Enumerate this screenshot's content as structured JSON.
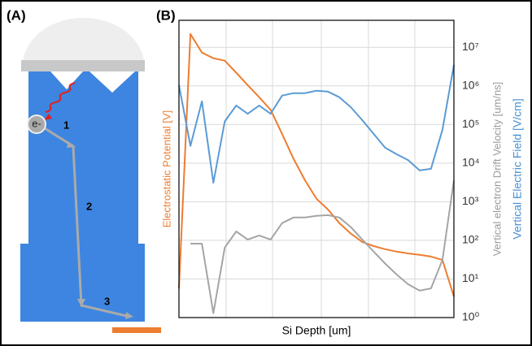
{
  "panel_a": {
    "label": "(A)",
    "electron": "e-",
    "steps": [
      "1",
      "2",
      "3"
    ]
  },
  "chart_data": {
    "type": "line",
    "panel_label": "(B)",
    "x_label": "Si Depth [um]",
    "y_label": "Electrostatic Potential [V]",
    "y2_labels": [
      {
        "text": "Vertical electron Drift Velocity [um/ns]",
        "color": "#9a9a9a"
      },
      {
        "text": "Vertical Electric Field [V/cm]",
        "color": "#4a8fd0"
      }
    ],
    "log_scale": true,
    "grid": true,
    "ylim": [
      1,
      50000000
    ],
    "yticks": [
      {
        "value": 1,
        "label": "10⁰"
      },
      {
        "value": 10,
        "label": "10¹"
      },
      {
        "value": 100,
        "label": "10²"
      },
      {
        "value": 1000,
        "label": "10³"
      },
      {
        "value": 10000,
        "label": "10⁴"
      },
      {
        "value": 100000,
        "label": "10⁵"
      },
      {
        "value": 1000000,
        "label": "10⁶"
      },
      {
        "value": 10000000,
        "label": "10⁷"
      }
    ],
    "categories": [
      null,
      null,
      null,
      null,
      null,
      null,
      null,
      null,
      null,
      null,
      null,
      null,
      null,
      null,
      null,
      null,
      null,
      null,
      null,
      null,
      null,
      null,
      null,
      null,
      null
    ],
    "series": [
      {
        "color": "#ed7d31",
        "values": [
          5.7,
          22000000,
          7300000,
          5200000,
          4500000,
          2200000,
          1050000,
          510000,
          240000,
          57000,
          13000,
          3600,
          1200,
          630,
          280,
          150,
          91,
          71,
          59,
          51,
          46,
          42,
          38,
          31,
          3.5
        ]
      },
      {
        "color": "#5b9bd5",
        "values": [
          1050000,
          28000,
          400000,
          3100,
          120000,
          310000,
          190000,
          310000,
          190000,
          560000,
          650000,
          650000,
          750000,
          710000,
          510000,
          280000,
          130000,
          57000,
          25000,
          17000,
          12000,
          6500,
          7100,
          73000,
          3500000
        ]
      },
      {
        "color": "#a5a5a5",
        "values": [
          null,
          82,
          82,
          1.3,
          65,
          170,
          105,
          134,
          105,
          280,
          390,
          390,
          430,
          450,
          390,
          220,
          105,
          51,
          25,
          13,
          7.3,
          5,
          5.7,
          31,
          3600
        ]
      }
    ]
  }
}
